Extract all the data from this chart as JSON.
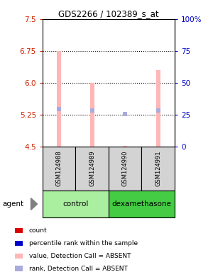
{
  "title": "GDS2266 / 102389_s_at",
  "samples": [
    "GSM124988",
    "GSM124989",
    "GSM124990",
    "GSM124991"
  ],
  "groups": [
    "control",
    "control",
    "dexamethasone",
    "dexamethasone"
  ],
  "ylim": [
    4.5,
    7.5
  ],
  "yticks_left": [
    4.5,
    5.25,
    6.0,
    6.75,
    7.5
  ],
  "yticks_right": [
    0,
    25,
    50,
    75,
    100
  ],
  "yticks_right_labels": [
    "0",
    "25",
    "50",
    "75",
    "100%"
  ],
  "dotted_lines": [
    5.25,
    6.0,
    6.75
  ],
  "bar_values": [
    6.75,
    6.0,
    4.52,
    6.3
  ],
  "bar_bottom": 4.5,
  "bar_color_absent": "#FFB6B6",
  "rank_values": [
    5.38,
    5.35,
    5.27,
    5.35
  ],
  "rank_color_absent": "#AAAADD",
  "detection_calls": [
    "ABSENT",
    "ABSENT",
    "ABSENT",
    "ABSENT"
  ],
  "legend_items": [
    {
      "label": "count",
      "color": "#DD0000"
    },
    {
      "label": "percentile rank within the sample",
      "color": "#0000CC"
    },
    {
      "label": "value, Detection Call = ABSENT",
      "color": "#FFB6B6"
    },
    {
      "label": "rank, Detection Call = ABSENT",
      "color": "#AAAADD"
    }
  ],
  "bar_width": 0.12,
  "sample_box_color": "#D3D3D3",
  "control_color": "#AAEEA0",
  "dexa_color": "#44CC44",
  "left_color": "#CC2200",
  "right_color": "#0000CC"
}
